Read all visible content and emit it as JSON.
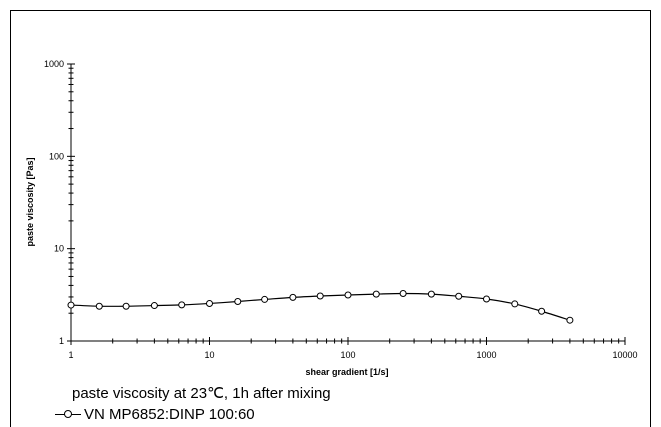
{
  "chart_data": {
    "type": "line",
    "caption": "paste viscosity at 23℃, 1h after mixing",
    "xlabel": "shear gradient  [1/s]",
    "ylabel": "paste viscosity  [Pas]",
    "xscale": "log",
    "yscale": "log",
    "xlim": [
      1,
      10000
    ],
    "ylim": [
      1,
      1000
    ],
    "x_tick_labels": [
      "1",
      "10",
      "100",
      "1000",
      "10000"
    ],
    "y_tick_labels": [
      "1",
      "10",
      "100",
      "1000"
    ],
    "grid": false,
    "legend_position": "bottom",
    "series": [
      {
        "name": "VN  MP6852:DINP  100:60",
        "color": "#000000",
        "marker": "open-circle",
        "x": [
          1,
          1.6,
          2.5,
          4,
          6.3,
          10,
          16,
          25,
          40,
          63,
          100,
          160,
          250,
          400,
          630,
          1000,
          1600,
          2500,
          4000
        ],
        "y": [
          2.45,
          2.38,
          2.38,
          2.42,
          2.46,
          2.55,
          2.68,
          2.82,
          2.97,
          3.07,
          3.15,
          3.22,
          3.27,
          3.22,
          3.05,
          2.85,
          2.52,
          2.1,
          1.68
        ]
      }
    ]
  }
}
